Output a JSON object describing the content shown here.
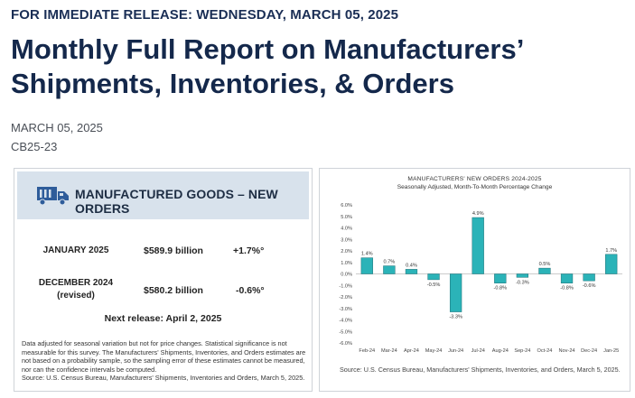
{
  "release_line": "FOR IMMEDIATE RELEASE: WEDNESDAY, MARCH 05, 2025",
  "headline": "Monthly Full Report on Manufacturers’ Shipments, Inventories, & Orders",
  "date": "MARCH 05, 2025",
  "release_code": "CB25-23",
  "summary_card": {
    "banner_title": "MANUFACTURED GOODS – NEW ORDERS",
    "rows": [
      {
        "label_line1": "JANUARY 2025",
        "label_line2": "",
        "value": "$589.9 billion",
        "change": "+1.7%°"
      },
      {
        "label_line1": "DECEMBER 2024",
        "label_line2": "(revised)",
        "value": "$580.2 billion",
        "change": "-0.6%°"
      }
    ],
    "next_release": "Next release: April 2, 2025",
    "footnote": "Data adjusted for seasonal variation but not for price changes. Statistical significance is not measurable for this survey. The Manufacturers' Shipments, Inventories, and Orders estimates are not based on a probability sample, so the sampling error of these estimates cannot be measured, nor can the confidence intervals be computed.",
    "source": "Source: U.S. Census Bureau, Manufacturers' Shipments, Inventories and Orders, March 5, 2025."
  },
  "chart_data": {
    "type": "bar",
    "title": "MANUFACTURERS' NEW ORDERS 2024-2025",
    "subtitle": "Seasonally Adjusted,  Month-To-Month Percentage Change",
    "categories": [
      "Feb-24",
      "Mar-24",
      "Apr-24",
      "May-24",
      "Jun-24",
      "Jul-24",
      "Aug-24",
      "Sep-24",
      "Oct-24",
      "Nov-24",
      "Dec-24",
      "Jan-25"
    ],
    "values": [
      1.4,
      0.7,
      0.4,
      -0.5,
      -3.3,
      4.9,
      -0.8,
      -0.3,
      0.5,
      -0.8,
      -0.6,
      1.7
    ],
    "data_labels": [
      "1.4%",
      "0.7%",
      "0.4%",
      "-0.5%",
      "-3.3%",
      "4.9%",
      "-0.8%",
      "-0.3%",
      "0.5%",
      "-0.8%",
      "-0.6%",
      "1.7%"
    ],
    "y_ticks": [
      "6.0%",
      "5.0%",
      "4.0%",
      "3.0%",
      "2.0%",
      "1.0%",
      "0.0%",
      "-1.0%",
      "-2.0%",
      "-3.0%",
      "-4.0%",
      "-5.0%",
      "-6.0%"
    ],
    "ylim": [
      -6,
      6
    ],
    "xlabel": "",
    "ylabel": "",
    "source": "Source: U.S. Census Bureau, Manufacturers' Shipments, Inventories, and Orders, March 5, 2025.",
    "bar_color": "#2bb3b8",
    "bar_edge_color": "#1b6e75"
  },
  "colors": {
    "headline": "#14284b",
    "banner": "#d8e2ec",
    "truck": "#2e5c9a"
  }
}
